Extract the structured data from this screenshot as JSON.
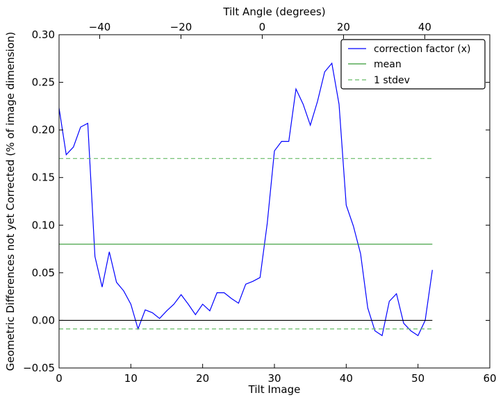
{
  "chart_data": {
    "type": "line",
    "xlabel": "Tilt Image",
    "ylabel": "Geometric Differences not yet Corrected (% of image dimension)",
    "top_xlabel": "Tilt Angle (degrees)",
    "xlim": [
      0,
      60
    ],
    "ylim": [
      -0.05,
      0.3
    ],
    "top_xlim": [
      -50,
      56
    ],
    "x_ticks": [
      "0",
      "10",
      "20",
      "30",
      "40",
      "50",
      "60"
    ],
    "x_tick_values": [
      0,
      10,
      20,
      30,
      40,
      50,
      60
    ],
    "y_ticks": [
      "−0.05",
      "0.00",
      "0.05",
      "0.10",
      "0.15",
      "0.20",
      "0.25",
      "0.30"
    ],
    "y_tick_values": [
      -0.05,
      0,
      0.05,
      0.1,
      0.15,
      0.2,
      0.25,
      0.3
    ],
    "top_ticks": [
      "−40",
      "−20",
      "0",
      "20",
      "40"
    ],
    "top_tick_values": [
      -40,
      -20,
      0,
      20,
      40
    ],
    "grid": false,
    "legend_position": "top-right",
    "series": [
      {
        "name": "correction factor (x)",
        "color": "#0000ff",
        "style": "solid",
        "x": [
          0,
          1,
          2,
          3,
          4,
          5,
          6,
          7,
          8,
          9,
          10,
          11,
          12,
          13,
          14,
          15,
          16,
          17,
          18,
          19,
          20,
          21,
          22,
          23,
          24,
          25,
          26,
          27,
          28,
          29,
          30,
          31,
          32,
          33,
          34,
          35,
          36,
          37,
          38,
          39,
          40,
          41,
          42,
          43,
          44,
          45,
          46,
          47,
          48,
          49,
          50,
          51,
          52
        ],
        "y": [
          0.223,
          0.174,
          0.182,
          0.203,
          0.207,
          0.067,
          0.035,
          0.072,
          0.04,
          0.031,
          0.017,
          -0.009,
          0.011,
          0.008,
          0.002,
          0.01,
          0.017,
          0.027,
          0.017,
          0.006,
          0.017,
          0.01,
          0.029,
          0.029,
          0.023,
          0.018,
          0.038,
          0.041,
          0.045,
          0.102,
          0.178,
          0.188,
          0.188,
          0.243,
          0.227,
          0.205,
          0.23,
          0.261,
          0.27,
          0.227,
          0.121,
          0.099,
          0.07,
          0.013,
          -0.011,
          -0.016,
          0.02,
          0.028,
          -0.003,
          -0.011,
          -0.016,
          0.0,
          0.053
        ]
      },
      {
        "name": "mean",
        "color": "#339933",
        "style": "solid",
        "x": [
          0,
          52
        ],
        "y": [
          0.08,
          0.08
        ]
      },
      {
        "name": "1 stdev",
        "color": "#66bb66",
        "style": "dashed",
        "x": [
          0,
          52
        ],
        "y": [
          0.17,
          0.17
        ]
      },
      {
        "color": "#66bb66",
        "style": "dashed",
        "x": [
          0,
          52
        ],
        "y": [
          -0.009,
          -0.009
        ]
      },
      {
        "color": "#000000",
        "style": "solid",
        "x": [
          0,
          52
        ],
        "y": [
          0.0,
          0.0
        ]
      }
    ]
  }
}
